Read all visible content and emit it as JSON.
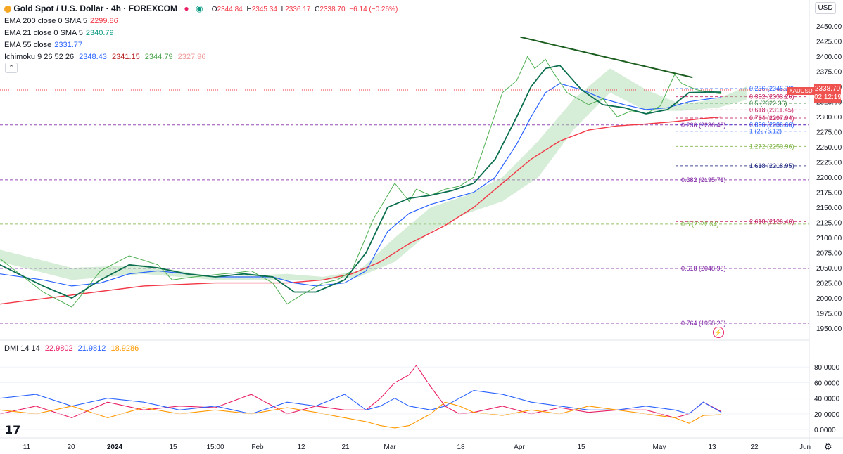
{
  "header": {
    "title": "Gold Spot / U.S. Dollar · 4h · FOREXCOM",
    "ohlc": {
      "o_label": "O",
      "o": "2344.84",
      "h_label": "H",
      "h": "2345.34",
      "l_label": "L",
      "l": "2336.17",
      "c_label": "C",
      "c": "2338.70",
      "change": "−6.14 (−0.26%)"
    }
  },
  "indicators": [
    {
      "name": "EMA 200 close 0 SMA 5",
      "values": [
        "2299.86"
      ],
      "colors": [
        "#f23645"
      ]
    },
    {
      "name": "EMA 21 close 0 SMA 5",
      "values": [
        "2340.79"
      ],
      "colors": [
        "#089981"
      ]
    },
    {
      "name": "EMA 55 close",
      "values": [
        "2331.77"
      ],
      "colors": [
        "#2962ff"
      ]
    },
    {
      "name": "Ichimoku 9 26 52 26",
      "values": [
        "2348.43",
        "2341.15",
        "2344.79",
        "2327.96"
      ],
      "colors": [
        "#2962ff",
        "#b71c1c",
        "#43a047",
        "#ef9a9a"
      ]
    }
  ],
  "dmi": {
    "name": "DMI 14 14",
    "values": [
      "22.9802",
      "21.9812",
      "18.9286"
    ],
    "colors": [
      "#e91e63",
      "#2962ff",
      "#ff9800"
    ]
  },
  "price_axis": {
    "currency": "USD",
    "current_symbol": "XAUUSD",
    "current_price": "2338.70",
    "countdown": "02:12:19"
  },
  "colors": {
    "candle_up": "#089981",
    "candle_down": "#f23645",
    "ema200": "#f23645",
    "ema21": "#0b6e4f",
    "ema55": "#2962ff",
    "cloud_bull": "#a5d6a7",
    "cloud_bear": "#ef9a9a",
    "trendline": "#1b5e20",
    "fib_purple": "#7b1fa2",
    "fib_blue": "#2962ff",
    "fib_green": "#7cb342",
    "fib_red": "#c2185b"
  },
  "chart_data": [
    {
      "type": "line",
      "title": "Gold Spot / U.S. Dollar · 4h · FOREXCOM",
      "x_axis_labels": [
        "11",
        "20",
        "2024",
        "15",
        "15:00",
        "Feb",
        "12",
        "21",
        "Mar",
        "18",
        "Apr",
        "15",
        "May",
        "13",
        "22",
        "Jun"
      ],
      "y_axis_labels": [
        "2450.00",
        "2425.00",
        "2400.00",
        "2375.00",
        "2350.00",
        "2325.00",
        "2300.00",
        "2275.00",
        "2250.00",
        "2225.00",
        "2200.00",
        "2175.00",
        "2150.00",
        "2125.00",
        "2100.00",
        "2075.00",
        "2050.00",
        "2025.00",
        "2000.00",
        "1975.00",
        "1950.00"
      ],
      "ylim": [
        1935,
        2470
      ],
      "series": [
        {
          "name": "Price",
          "x": [
            0,
            6,
            10,
            14,
            18,
            22,
            24,
            27,
            31,
            33,
            35,
            38,
            40,
            42,
            45,
            47,
            49,
            52,
            55,
            57,
            58,
            60,
            62,
            64,
            66,
            68,
            70,
            72,
            73.5,
            74.5,
            76,
            77,
            79,
            82,
            84,
            86,
            88,
            90,
            92,
            94,
            95,
            97,
            99,
            100.5
          ],
          "values": [
            2065,
            2010,
            1985,
            2045,
            2070,
            2055,
            2030,
            2035,
            2040,
            2042,
            2045,
            2025,
            1990,
            2005,
            2025,
            2030,
            2045,
            2130,
            2190,
            2160,
            2180,
            2170,
            2180,
            2185,
            2200,
            2270,
            2340,
            2360,
            2400,
            2380,
            2395,
            2375,
            2340,
            2320,
            2330,
            2300,
            2310,
            2305,
            2318,
            2370,
            2355,
            2345,
            2340,
            2338
          ]
        },
        {
          "name": "EMA 21",
          "x": [
            0,
            6,
            10,
            14,
            18,
            22,
            26,
            30,
            34,
            38,
            41,
            44,
            48,
            51,
            54,
            57,
            60,
            63,
            66,
            69,
            72,
            74,
            76,
            78,
            81,
            84,
            87,
            90,
            93,
            96,
            99,
            100.5
          ],
          "values": [
            2055,
            2020,
            2000,
            2030,
            2055,
            2050,
            2040,
            2035,
            2040,
            2035,
            2010,
            2010,
            2030,
            2075,
            2150,
            2165,
            2170,
            2178,
            2190,
            2230,
            2300,
            2350,
            2380,
            2385,
            2345,
            2320,
            2315,
            2305,
            2312,
            2340,
            2341,
            2340.79
          ]
        },
        {
          "name": "EMA 55",
          "x": [
            0,
            6,
            10,
            14,
            18,
            22,
            26,
            30,
            34,
            38,
            41,
            44,
            48,
            51,
            54,
            57,
            60,
            63,
            66,
            69,
            72,
            74,
            76,
            78,
            81,
            84,
            87,
            90,
            93,
            96,
            99,
            100.5
          ],
          "values": [
            2040,
            2030,
            2020,
            2025,
            2040,
            2045,
            2040,
            2035,
            2035,
            2035,
            2025,
            2020,
            2025,
            2045,
            2110,
            2140,
            2155,
            2165,
            2175,
            2200,
            2255,
            2300,
            2340,
            2355,
            2345,
            2330,
            2320,
            2312,
            2315,
            2325,
            2330,
            2331.77
          ]
        },
        {
          "name": "EMA 200",
          "x": [
            0,
            10,
            20,
            30,
            40,
            45,
            49,
            53,
            57,
            62,
            66,
            70,
            74,
            78,
            82,
            86,
            90,
            94,
            98,
            100.5
          ],
          "values": [
            1990,
            2005,
            2020,
            2025,
            2025,
            2030,
            2040,
            2060,
            2090,
            2120,
            2150,
            2190,
            2230,
            2260,
            2278,
            2285,
            2288,
            2292,
            2297,
            2299.86
          ]
        },
        {
          "name": "Ichimoku cloud (Senkou A/B)",
          "x": [
            0,
            10,
            20,
            30,
            40,
            45,
            50,
            55,
            60,
            65,
            70,
            75,
            80,
            85,
            90,
            95,
            100,
            104
          ],
          "senkou_a": [
            2080,
            2050,
            2055,
            2035,
            2040,
            2035,
            2045,
            2100,
            2150,
            2170,
            2200,
            2260,
            2330,
            2380,
            2345,
            2320,
            2330,
            2350
          ],
          "senkou_b": [
            2060,
            2030,
            2040,
            2030,
            2030,
            2030,
            2035,
            2060,
            2110,
            2140,
            2160,
            2200,
            2280,
            2340,
            2310,
            2310,
            2315,
            2327.96
          ]
        }
      ],
      "trendline": {
        "start": {
          "x": 72.5,
          "y": 2432
        },
        "end": {
          "x": 96.5,
          "y": 2365
        }
      },
      "fib_levels": [
        {
          "label": "0.236",
          "value": "2346.78",
          "y": 2346.78,
          "color": "#2962ff"
        },
        {
          "label": "0.382",
          "value": "2333.26",
          "y": 2333.26,
          "color": "#c2185b"
        },
        {
          "label": "0.5",
          "value": "2322.36",
          "y": 2322.36,
          "color": "#2e7d32"
        },
        {
          "label": "0.618",
          "value": "2311.45",
          "y": 2311.45,
          "color": "#c2185b"
        },
        {
          "label": "0.764",
          "value": "2297.94",
          "y": 2297.94,
          "color": "#c2185b"
        },
        {
          "label": "0.886",
          "value": "2286.66",
          "y": 2286.66,
          "color": "#2962ff"
        },
        {
          "label": "1",
          "value": "2276.12",
          "y": 2276.12,
          "color": "#2962ff"
        },
        {
          "label": "1.272",
          "value": "2250.96",
          "y": 2250.96,
          "color": "#7cb342"
        },
        {
          "label": "1.618",
          "value": "2218.95",
          "y": 2218.95,
          "color": "#1a237e"
        },
        {
          "label": "2.618",
          "value": "2126.46",
          "y": 2126.46,
          "color": "#c2185b"
        },
        {
          "label": "0.236",
          "value": "2286.48",
          "y": 2286.48,
          "color": "#7b1fa2",
          "long": true
        },
        {
          "label": "0.382",
          "value": "2195.71",
          "y": 2195.71,
          "color": "#7b1fa2",
          "long": true
        },
        {
          "label": "0.5",
          "value": "2122.34",
          "y": 2122.34,
          "color": "#7cb342",
          "long": true
        },
        {
          "label": "0.618",
          "value": "2048.98",
          "y": 2048.98,
          "color": "#7b1fa2",
          "long": true
        },
        {
          "label": "0.764",
          "value": "1958.20",
          "y": 1958.2,
          "color": "#7b1fa2",
          "long": true
        }
      ]
    },
    {
      "type": "line",
      "title": "DMI 14 14",
      "y_axis_labels": [
        "80.0000",
        "60.0000",
        "40.0000",
        "20.0000",
        "0.0000"
      ],
      "ylim": [
        -8,
        100
      ],
      "series": [
        {
          "name": "+DI",
          "x": [
            0,
            5,
            10,
            15,
            20,
            25,
            30,
            35,
            40,
            44,
            48,
            51,
            53,
            55,
            57,
            58,
            60,
            62,
            64,
            66,
            70,
            74,
            78,
            82,
            86,
            90,
            94,
            96,
            98,
            100.5
          ],
          "values": [
            20,
            30,
            15,
            35,
            25,
            30,
            28,
            45,
            20,
            30,
            25,
            25,
            40,
            60,
            70,
            82,
            55,
            30,
            20,
            22,
            30,
            20,
            28,
            22,
            25,
            25,
            15,
            20,
            35,
            22.98
          ]
        },
        {
          "name": "−DI",
          "x": [
            0,
            5,
            10,
            15,
            20,
            25,
            30,
            35,
            40,
            44,
            48,
            51,
            53,
            55,
            57,
            60,
            62,
            64,
            66,
            70,
            74,
            78,
            82,
            86,
            90,
            94,
            96,
            98,
            100.5
          ],
          "values": [
            40,
            45,
            30,
            40,
            35,
            25,
            30,
            20,
            35,
            30,
            45,
            25,
            30,
            40,
            30,
            25,
            30,
            40,
            50,
            45,
            35,
            30,
            25,
            25,
            30,
            25,
            20,
            35,
            21.98
          ]
        },
        {
          "name": "ADX",
          "x": [
            0,
            5,
            10,
            15,
            20,
            25,
            30,
            35,
            40,
            44,
            48,
            51,
            53,
            55,
            57,
            60,
            62,
            64,
            66,
            70,
            74,
            78,
            82,
            86,
            90,
            94,
            96,
            98,
            100.5
          ],
          "values": [
            25,
            20,
            30,
            15,
            28,
            20,
            25,
            20,
            28,
            22,
            15,
            10,
            5,
            2,
            5,
            20,
            35,
            30,
            22,
            18,
            25,
            20,
            30,
            25,
            20,
            15,
            8,
            18,
            18.93
          ]
        }
      ]
    }
  ]
}
